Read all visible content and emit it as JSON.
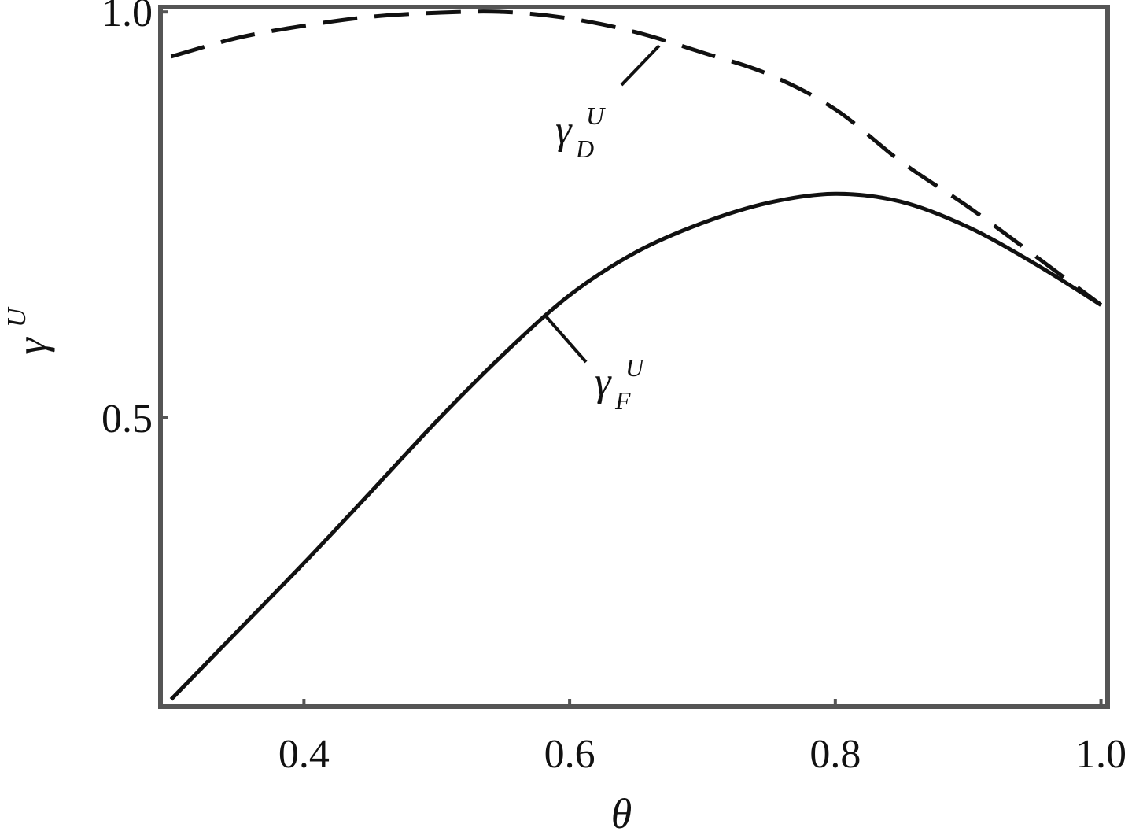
{
  "chart_data": {
    "type": "line",
    "x_label": "θ",
    "y_label": "γ",
    "y_label_sup": "U",
    "x": [
      0.3,
      0.35,
      0.4,
      0.45,
      0.5,
      0.55,
      0.6,
      0.65,
      0.7,
      0.75,
      0.8,
      0.85,
      0.9,
      0.95,
      1.0
    ],
    "series": [
      {
        "color": "#111111",
        "style": "dashed",
        "values": [
          0.945,
          0.968,
          0.983,
          0.994,
          0.999,
          1.0,
          0.992,
          0.975,
          0.95,
          0.923,
          0.88,
          0.815,
          0.76,
          0.7,
          0.639
        ]
      },
      {
        "color": "#111111",
        "style": "solid",
        "values": [
          0.153,
          0.237,
          0.321,
          0.408,
          0.496,
          0.578,
          0.651,
          0.704,
          0.74,
          0.765,
          0.776,
          0.766,
          0.735,
          0.69,
          0.639
        ]
      }
    ],
    "annotations": [
      {
        "base": "γ",
        "sub": "D",
        "sup": "U"
      },
      {
        "base": "γ",
        "sub": "F",
        "sup": "U"
      }
    ],
    "xlim": [
      0.292,
      1.005
    ],
    "ylim": [
      0.144,
      1.006
    ],
    "xticks": [
      0.4,
      0.6,
      0.8,
      {
        "value": 1,
        "label": "1.0"
      }
    ],
    "yticks": [
      0.5,
      {
        "value": 1,
        "label": "1.0"
      }
    ]
  }
}
